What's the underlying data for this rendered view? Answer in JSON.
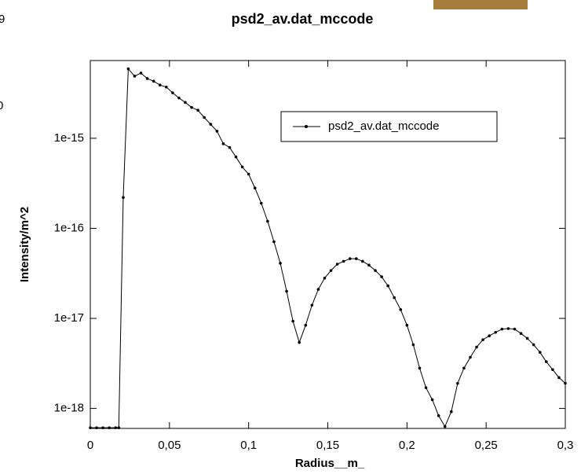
{
  "chart_data": {
    "type": "line",
    "title": "psd2_av.dat_mccode",
    "x_label": "Radius__m_",
    "y_label": "Intensity/m^2",
    "edge_fragments": [
      "9",
      "0"
    ],
    "x": [
      0,
      0.004,
      0.008,
      0.012,
      0.016,
      0.018,
      0.0208,
      0.024,
      0.028,
      0.032,
      0.036,
      0.04,
      0.044,
      0.048,
      0.052,
      0.056,
      0.06,
      0.064,
      0.068,
      0.072,
      0.076,
      0.08,
      0.084,
      0.088,
      0.092,
      0.096,
      0.1,
      0.104,
      0.108,
      0.112,
      0.116,
      0.12,
      0.124,
      0.128,
      0.132,
      0.136,
      0.14,
      0.144,
      0.148,
      0.152,
      0.156,
      0.16,
      0.164,
      0.168,
      0.172,
      0.176,
      0.18,
      0.184,
      0.188,
      0.192,
      0.196,
      0.2,
      0.204,
      0.208,
      0.212,
      0.216,
      0.22,
      0.224,
      0.228,
      0.232,
      0.236,
      0.24,
      0.244,
      0.248,
      0.252,
      0.256,
      0.26,
      0.264,
      0.268,
      0.272,
      0.276,
      0.28,
      0.284,
      0.288,
      0.292,
      0.296,
      0.3
    ],
    "series": [
      {
        "name": "psd2_av.dat_mccode",
        "color": "#000000",
        "values": [
          6.1e-19,
          6.1e-19,
          6.1e-19,
          6.1e-19,
          6.1e-19,
          6.1e-19,
          2.2e-16,
          5.9e-15,
          4.9e-15,
          5.3e-15,
          4.6e-15,
          4.3e-15,
          3.9e-15,
          3.7e-15,
          3.2e-15,
          2.8e-15,
          2.5e-15,
          2.2e-15,
          2.05e-15,
          1.7e-15,
          1.43e-15,
          1.2e-15,
          8.7e-16,
          7.9e-16,
          6.2e-16,
          4.8e-16,
          4e-16,
          2.8e-16,
          1.9e-16,
          1.2e-16,
          7.1e-17,
          4.1e-17,
          2e-17,
          9.3e-18,
          5.4e-18,
          8.4e-18,
          1.4e-17,
          2.1e-17,
          2.8e-17,
          3.4e-17,
          4e-17,
          4.3e-17,
          4.6e-17,
          4.6e-17,
          4.3e-17,
          3.9e-17,
          3.4e-17,
          2.9e-17,
          2.3e-17,
          1.7e-17,
          1.25e-17,
          8.4e-18,
          5.1e-18,
          2.8e-18,
          1.7e-18,
          1.25e-18,
          8.3e-19,
          6.3e-19,
          9.2e-19,
          1.9e-18,
          2.8e-18,
          3.7e-18,
          4.8e-18,
          5.8e-18,
          6.4e-18,
          7e-18,
          7.6e-18,
          7.7e-18,
          7.6e-18,
          6.8e-18,
          6e-18,
          5.1e-18,
          4.2e-18,
          3.3e-18,
          2.7e-18,
          2.2e-18,
          1.9e-18
        ]
      }
    ],
    "xlim": [
      0,
      0.3
    ],
    "xticks": [
      0,
      {
        "value": 0.05,
        "label": "0,05"
      },
      {
        "value": 0.1,
        "label": "0,1"
      },
      {
        "value": 0.15,
        "label": "0,15"
      },
      {
        "value": 0.2,
        "label": "0,2"
      },
      {
        "value": 0.25,
        "label": "0,25"
      },
      {
        "value": 0.3,
        "label": "0,3"
      }
    ],
    "ylim": [
      6e-19,
      7.3e-15
    ],
    "yticks": [
      1e-18,
      1e-17,
      1e-16,
      1e-15
    ],
    "log_y": true,
    "grid": false,
    "legend": "upper right"
  }
}
